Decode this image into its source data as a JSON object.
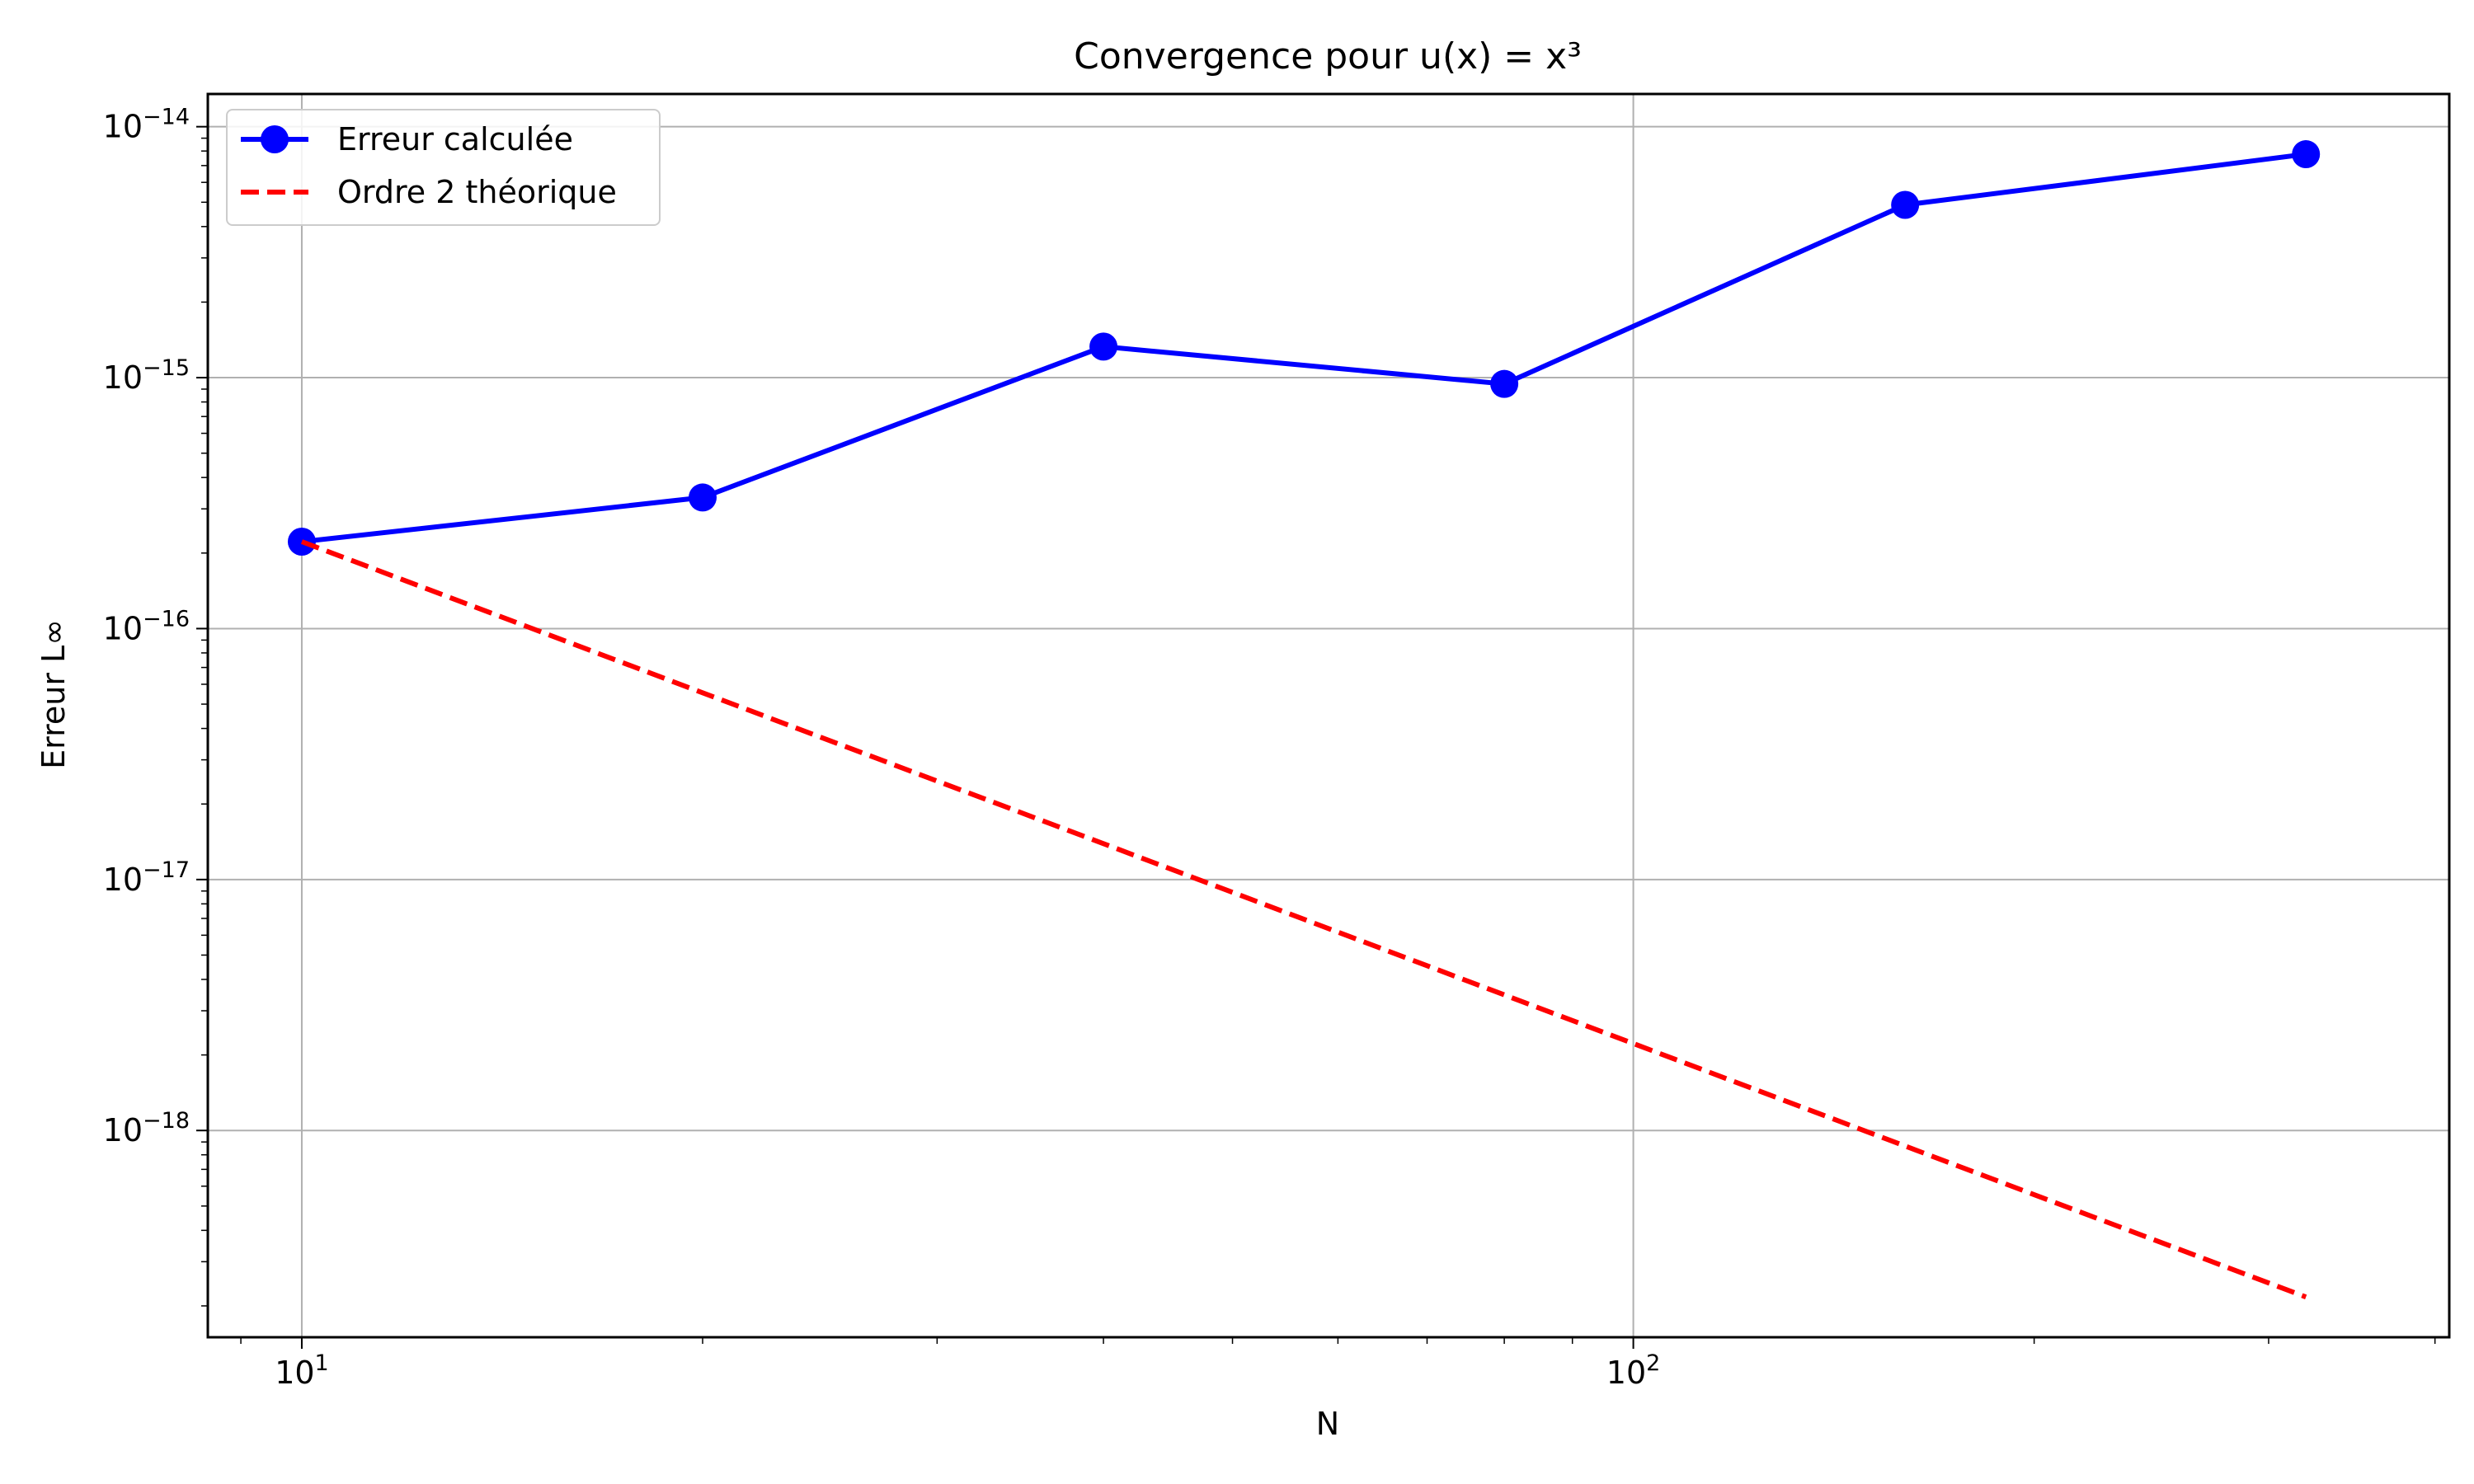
{
  "chart_data": {
    "type": "line",
    "title": "Convergence pour u(x) = x³",
    "xlabel": "N",
    "ylabel": "Erreur L∞",
    "xscale": "log",
    "yscale": "log",
    "xlim": [
      8.5,
      410
    ],
    "ylim": [
      1.5e-19,
      1.35e-14
    ],
    "grid": true,
    "legend_position": "top-left",
    "xticks": [
      {
        "value": 10,
        "base": "10",
        "exp": "1"
      },
      {
        "value": 100,
        "base": "10",
        "exp": "2"
      }
    ],
    "yticks": [
      {
        "value": 1e-14,
        "base": "10",
        "exp": "−14"
      },
      {
        "value": 1e-15,
        "base": "10",
        "exp": "−15"
      },
      {
        "value": 1e-16,
        "base": "10",
        "exp": "−16"
      },
      {
        "value": 1e-17,
        "base": "10",
        "exp": "−17"
      },
      {
        "value": 1e-18,
        "base": "10",
        "exp": "−18"
      }
    ],
    "series": [
      {
        "name": "Erreur calculée",
        "color": "#0000ff",
        "style": "solid",
        "marker": "circle",
        "x": [
          10,
          20,
          40,
          80,
          160,
          320
        ],
        "y": [
          2.22e-16,
          3.33e-16,
          1.33e-15,
          9.44e-16,
          4.88e-15,
          7.77e-15
        ]
      },
      {
        "name": "Ordre 2 théorique",
        "color": "#ff0000",
        "style": "dashed",
        "marker": "none",
        "x": [
          10,
          20,
          40,
          80,
          160,
          320
        ],
        "y": [
          2.22e-16,
          5.55e-17,
          1.39e-17,
          3.47e-18,
          8.67e-19,
          2.17e-19
        ]
      }
    ]
  }
}
